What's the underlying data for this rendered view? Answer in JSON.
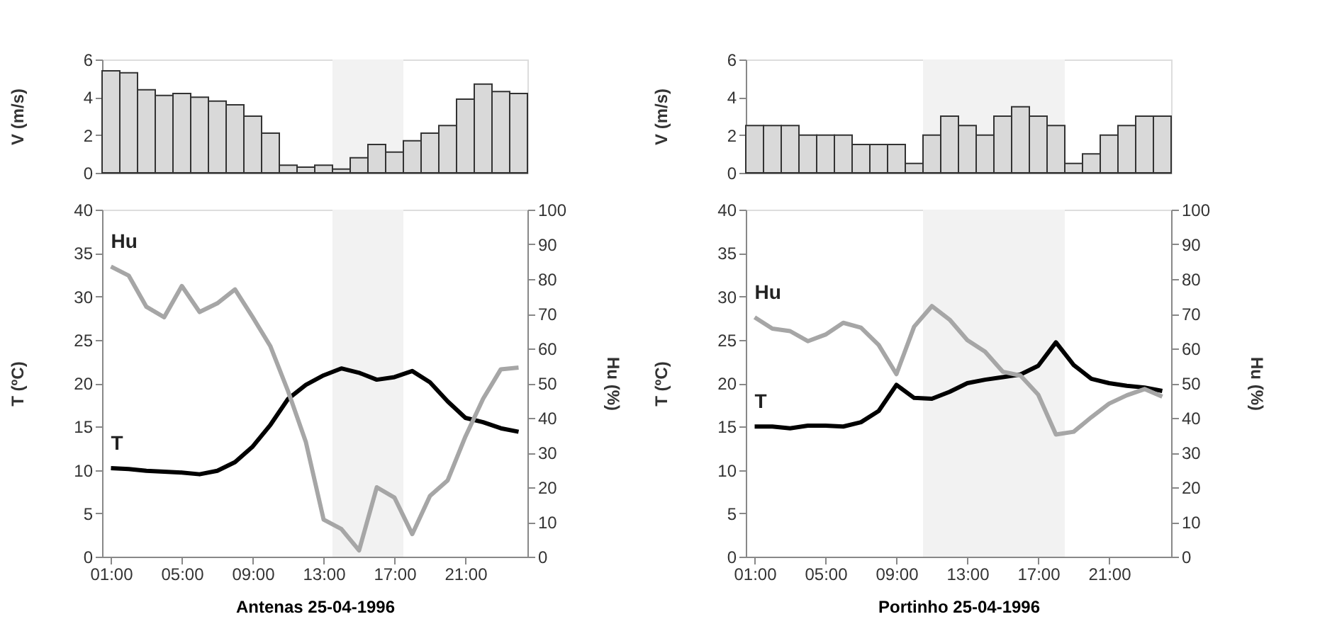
{
  "chart_data": [
    {
      "type": "bar",
      "ylabel": "V (m/s)",
      "x": [
        1,
        2,
        3,
        4,
        5,
        6,
        7,
        8,
        9,
        10,
        11,
        12,
        13,
        14,
        15,
        16,
        17,
        18,
        19,
        20,
        21,
        22,
        23,
        24
      ],
      "xlim": [
        0.5,
        24.5
      ],
      "ylim": [
        0,
        6
      ],
      "yticks": [
        0,
        2,
        4,
        6
      ],
      "tick_labels": "y",
      "grid": false,
      "series": [
        {
          "color": "#d9d9d9",
          "values": [
            5.4,
            5.3,
            4.4,
            4.1,
            4.2,
            4.0,
            3.8,
            3.6,
            3.0,
            2.1,
            0.4,
            0.3,
            0.4,
            0.2,
            0.8,
            1.5,
            1.1,
            1.7,
            2.1,
            2.5,
            3.9,
            4.7,
            4.3,
            4.2
          ]
        }
      ],
      "bands": [
        {
          "axis": "x",
          "from": 13.5,
          "to": 17.5,
          "color": "#f2f2f2"
        }
      ]
    },
    {
      "type": "line",
      "xlabel": "Antenas 25-04-1996",
      "ylabel": "T (ºC)",
      "y2label": "Hu (%)",
      "x": [
        1,
        2,
        3,
        4,
        5,
        6,
        7,
        8,
        9,
        10,
        11,
        12,
        13,
        14,
        15,
        16,
        17,
        18,
        19,
        20,
        21,
        22,
        23,
        24
      ],
      "xlim": [
        0.5,
        24.5
      ],
      "xticks": [
        {
          "value": 1,
          "label": "01:00"
        },
        {
          "value": 5,
          "label": "05:00"
        },
        {
          "value": 9,
          "label": "09:00"
        },
        {
          "value": 13,
          "label": "13:00"
        },
        {
          "value": 17,
          "label": "17:00"
        },
        {
          "value": 21,
          "label": "21:00"
        }
      ],
      "ylim": [
        0,
        40
      ],
      "yticks": [
        0,
        5,
        10,
        15,
        20,
        25,
        30,
        35,
        40
      ],
      "y2lim": [
        0,
        100
      ],
      "y2ticks": [
        0,
        10,
        20,
        30,
        40,
        50,
        60,
        70,
        80,
        90,
        100
      ],
      "grid": false,
      "line_style": "solid",
      "marker": "none",
      "series": [
        {
          "name": "T",
          "color": "#000000",
          "values": [
            10.2,
            10.1,
            9.9,
            9.8,
            9.7,
            9.5,
            9.9,
            10.9,
            12.7,
            15.2,
            18.2,
            19.8,
            20.9,
            21.7,
            21.2,
            20.4,
            20.7,
            21.4,
            20.1,
            17.9,
            16.0,
            15.5,
            14.8,
            14.4
          ]
        },
        {
          "name": "Hu",
          "color": "#a6a6a6",
          "axis": "y2",
          "values": [
            83.6,
            81,
            72,
            69,
            78,
            70.5,
            73,
            77,
            69,
            60.6,
            47.6,
            33,
            10.7,
            8,
            1.8,
            20,
            17,
            6.5,
            17.5,
            22,
            34.6,
            45.5,
            54,
            54.5
          ]
        }
      ],
      "bands": [
        {
          "axis": "x",
          "from": 13.5,
          "to": 17.5,
          "color": "#f2f2f2"
        }
      ]
    },
    {
      "type": "bar",
      "ylabel": "V (m/s)",
      "x": [
        1,
        2,
        3,
        4,
        5,
        6,
        7,
        8,
        9,
        10,
        11,
        12,
        13,
        14,
        15,
        16,
        17,
        18,
        19,
        20,
        21,
        22,
        23,
        24
      ],
      "xlim": [
        0.5,
        24.5
      ],
      "ylim": [
        0,
        6
      ],
      "yticks": [
        0,
        2,
        4,
        6
      ],
      "tick_labels": "y",
      "grid": false,
      "series": [
        {
          "color": "#d9d9d9",
          "values": [
            2.5,
            2.5,
            2.5,
            2,
            2,
            2,
            1.5,
            1.5,
            1.5,
            0.5,
            2,
            3,
            2.5,
            2,
            3,
            3.5,
            3,
            2.5,
            0.5,
            1,
            2,
            2.5,
            3,
            3
          ]
        }
      ],
      "bands": [
        {
          "axis": "x",
          "from": 10.5,
          "to": 18.5,
          "color": "#f2f2f2"
        }
      ]
    },
    {
      "type": "line",
      "xlabel": "Portinho 25-04-1996",
      "ylabel": "T (ºC)",
      "y2label": "Hu (%)",
      "x": [
        1,
        2,
        3,
        4,
        5,
        6,
        7,
        8,
        9,
        10,
        11,
        12,
        13,
        14,
        15,
        16,
        17,
        18,
        19,
        20,
        21,
        22,
        23,
        24
      ],
      "xlim": [
        0.5,
        24.5
      ],
      "xticks": [
        {
          "value": 1,
          "label": "01:00"
        },
        {
          "value": 5,
          "label": "05:00"
        },
        {
          "value": 9,
          "label": "09:00"
        },
        {
          "value": 13,
          "label": "13:00"
        },
        {
          "value": 17,
          "label": "17:00"
        },
        {
          "value": 21,
          "label": "21:00"
        }
      ],
      "ylim": [
        0,
        40
      ],
      "yticks": [
        0,
        5,
        10,
        15,
        20,
        25,
        30,
        35,
        40
      ],
      "y2lim": [
        0,
        100
      ],
      "y2ticks": [
        0,
        10,
        20,
        30,
        40,
        50,
        60,
        70,
        80,
        90,
        100
      ],
      "grid": false,
      "line_style": "solid",
      "marker": "none",
      "series": [
        {
          "name": "T",
          "color": "#000000",
          "values": [
            15,
            15,
            14.8,
            15.1,
            15.1,
            15,
            15.5,
            16.8,
            19.8,
            18.3,
            18.2,
            19,
            20,
            20.4,
            20.7,
            21,
            22,
            24.7,
            22.1,
            20.5,
            20,
            19.7,
            19.5,
            19.1
          ]
        },
        {
          "name": "Hu",
          "color": "#a6a6a6",
          "axis": "y2",
          "values": [
            69,
            65.7,
            65,
            62.1,
            64,
            67.4,
            66,
            61,
            52.6,
            66.3,
            72.2,
            68.3,
            62.4,
            59.1,
            53.3,
            52.2,
            46.7,
            35.2,
            36,
            40.2,
            44.1,
            46.5,
            48.3,
            46.1
          ]
        }
      ],
      "bands": [
        {
          "axis": "x",
          "from": 10.5,
          "to": 18.5,
          "color": "#f2f2f2"
        }
      ]
    }
  ]
}
